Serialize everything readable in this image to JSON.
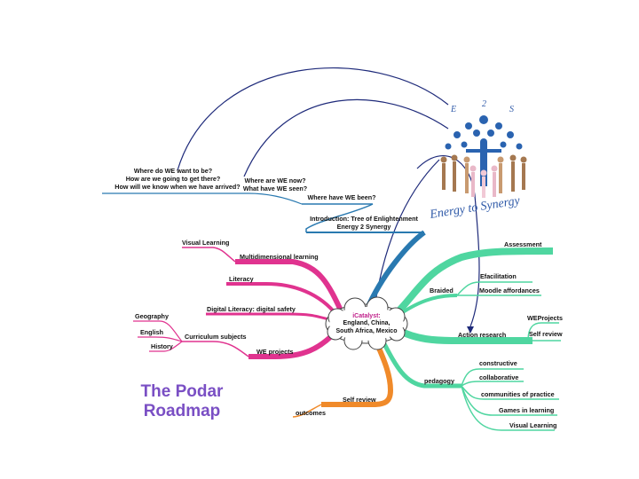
{
  "title": {
    "line1": "The Podar",
    "line2": "Roadmap"
  },
  "central": {
    "line1": "iCatalyst:",
    "line2": "England,  China,",
    "line3": "South Africa, Mexico"
  },
  "logo": {
    "caption": "Energy to Synergy",
    "letter_e": "E",
    "letter_2": "2",
    "letter_s": "S"
  },
  "questions": {
    "want": "Where do WE want to be?",
    "getting": "How are we going to get there?",
    "know": "How will we know when we have arrived?",
    "now": "Where are WE now?",
    "seen": "What have WE seen?",
    "been": "Where have WE been?"
  },
  "intro": {
    "line1": "Introduction: Tree of Enlightenment",
    "line2": "Energy 2 Synergy"
  },
  "left_branches": {
    "multidimensional": "Multidimensional learning",
    "visual_learning": "Visual Learning",
    "literacy": "Literacy",
    "digital_literacy": "Digital Literacy: digital safety",
    "we_projects": "WE projects",
    "curriculum": "Curriculum subjects",
    "geography": "Geography",
    "english": "English",
    "history": "History"
  },
  "right_branches": {
    "assessment": "Assessment",
    "braided": "Braided",
    "efacilitation": "Efacilitation",
    "moodle": "Moodle affordances",
    "action_research": "Action research",
    "weprojects": "WEProjects",
    "self_review": "Self review",
    "pedagogy": "pedagogy",
    "constructive": "constructive",
    "collaborative": "collaborative",
    "communities": "communities of practice",
    "games": "Games in learning",
    "visual_learning": "Visual Learning"
  },
  "bottom_branches": {
    "self_review": "Self review",
    "outcomes": "outcomes"
  },
  "colors": {
    "magenta": "#e0338f",
    "green": "#4fd6a0",
    "teal_blue": "#2979b0",
    "orange": "#f08a2a",
    "navy": "#1e2a7a",
    "title": "#7a4fc4"
  }
}
